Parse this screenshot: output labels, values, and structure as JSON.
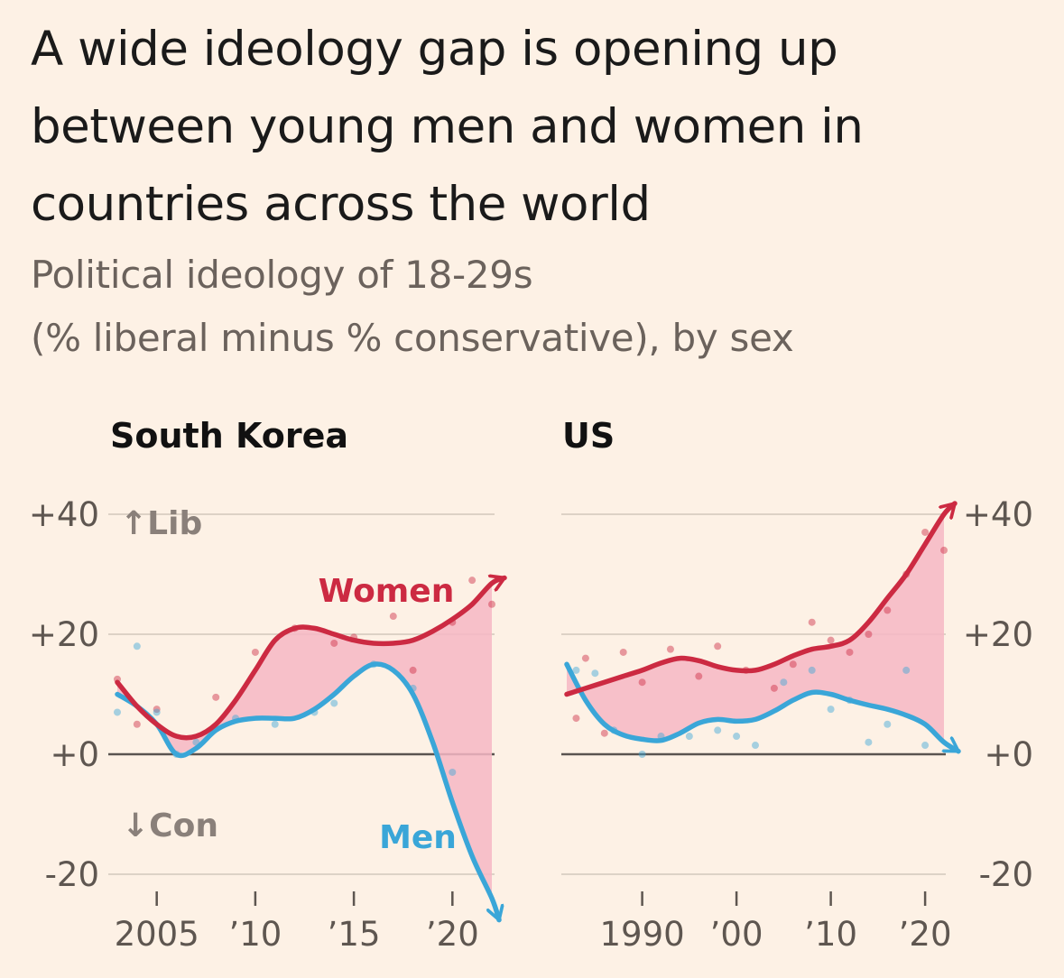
{
  "title": "A wide ideology gap is opening up between young men and women in countries across the world",
  "subtitle": {
    "line1": "Political ideology of 18-29s",
    "line2": "(% liberal minus % conservative), by sex"
  },
  "colors": {
    "women": "#cc2a42",
    "men": "#3aa6d8",
    "gap_fill": "#f6b7c4",
    "grid": "#ddd2c6",
    "zero_line": "#5a5450",
    "background": "#fdf1e5"
  },
  "chart_data": [
    {
      "type": "line",
      "title": "South Korea",
      "ylim": [
        -20,
        40
      ],
      "yticks": [
        40,
        20,
        0,
        -20
      ],
      "ytick_labels": [
        "+40",
        "+20",
        "+0",
        "-20"
      ],
      "xlim": [
        2003,
        2022
      ],
      "xticks": [
        2005,
        2010,
        2015,
        2020
      ],
      "xtick_labels": [
        "2005",
        "’10",
        "’15",
        "’20"
      ],
      "annotations": [
        "↑Lib",
        "↓Con"
      ],
      "gap_shaded": true,
      "grid": true,
      "series": [
        {
          "name": "Women",
          "color_key": "women",
          "x": [
            2003,
            2004,
            2005,
            2006,
            2007,
            2008,
            2009,
            2010,
            2011,
            2012,
            2013,
            2014,
            2015,
            2016,
            2017,
            2018,
            2019,
            2020,
            2021,
            2022
          ],
          "y": [
            12,
            8,
            5,
            3,
            3,
            5,
            9,
            14,
            19,
            21,
            21,
            20,
            19,
            18.5,
            18.5,
            19,
            20.5,
            22.5,
            25,
            28.5
          ]
        },
        {
          "name": "Men",
          "color_key": "men",
          "x": [
            2003,
            2004,
            2005,
            2006,
            2007,
            2008,
            2009,
            2010,
            2011,
            2012,
            2013,
            2014,
            2015,
            2016,
            2017,
            2018,
            2019,
            2020,
            2021,
            2022
          ],
          "y": [
            10,
            8,
            5,
            0,
            1,
            4,
            5.5,
            6,
            6,
            6,
            7.5,
            10,
            13,
            15,
            14,
            10,
            2,
            -8,
            -17,
            -24
          ]
        }
      ],
      "scatter": [
        {
          "series": "Women",
          "x": [
            2003,
            2004,
            2005,
            2008,
            2010,
            2012,
            2014,
            2015,
            2017,
            2018,
            2020,
            2021,
            2022
          ],
          "y": [
            12.5,
            5,
            7.5,
            9.5,
            17,
            21,
            18.5,
            19.5,
            23,
            14,
            22,
            29,
            25
          ]
        },
        {
          "series": "Men",
          "x": [
            2003,
            2004,
            2005,
            2006,
            2007,
            2009,
            2011,
            2013,
            2014,
            2016,
            2018,
            2020
          ],
          "y": [
            7,
            18,
            7,
            0,
            2,
            6,
            5,
            7,
            8.5,
            15,
            11,
            -3
          ]
        }
      ]
    },
    {
      "type": "line",
      "title": "US",
      "ylim": [
        -20,
        40
      ],
      "yticks": [
        40,
        20,
        0,
        -20
      ],
      "ytick_labels": [
        "+40",
        "+20",
        "+0",
        "-20"
      ],
      "xlim": [
        1982,
        2022
      ],
      "xticks": [
        1990,
        2000,
        2010,
        2020
      ],
      "xtick_labels": [
        "1990",
        "’00",
        "’10",
        "’20"
      ],
      "gap_shaded": true,
      "grid": true,
      "series": [
        {
          "name": "Women",
          "color_key": "women",
          "x": [
            1982,
            1985,
            1988,
            1990,
            1992,
            1994,
            1996,
            1998,
            2000,
            2002,
            2004,
            2006,
            2008,
            2010,
            2012,
            2014,
            2016,
            2018,
            2020,
            2022
          ],
          "y": [
            10,
            11.5,
            13,
            14,
            15.2,
            16,
            15.6,
            14.6,
            14,
            14,
            15,
            16.4,
            17.5,
            18,
            19,
            22,
            26,
            30,
            35,
            40
          ]
        },
        {
          "name": "Men",
          "color_key": "men",
          "x": [
            1982,
            1984,
            1986,
            1988,
            1990,
            1992,
            1994,
            1996,
            1998,
            2000,
            2002,
            2004,
            2006,
            2008,
            2010,
            2012,
            2014,
            2016,
            2018,
            2020,
            2022
          ],
          "y": [
            15,
            9,
            5,
            3.2,
            2.5,
            2.3,
            3.5,
            5.2,
            5.8,
            5.5,
            5.8,
            7.2,
            9,
            10.3,
            10,
            9,
            8.2,
            7.5,
            6.5,
            5,
            2
          ]
        }
      ],
      "scatter": [
        {
          "series": "Women",
          "x": [
            1983,
            1984,
            1986,
            1988,
            1990,
            1993,
            1996,
            1998,
            2001,
            2004,
            2006,
            2008,
            2010,
            2012,
            2014,
            2016,
            2018,
            2020,
            2022
          ],
          "y": [
            6,
            16,
            3.5,
            17,
            12,
            17.5,
            13,
            18,
            14,
            11,
            15,
            22,
            19,
            17,
            20,
            24,
            30,
            37,
            34
          ]
        },
        {
          "series": "Men",
          "x": [
            1983,
            1985,
            1987,
            1990,
            1992,
            1995,
            1998,
            2000,
            2002,
            2005,
            2008,
            2010,
            2012,
            2014,
            2016,
            2018,
            2020
          ],
          "y": [
            14,
            13.5,
            4,
            0,
            3,
            3,
            4,
            3,
            1.5,
            12,
            14,
            7.5,
            9,
            2,
            5,
            14,
            1.5
          ]
        }
      ]
    }
  ]
}
